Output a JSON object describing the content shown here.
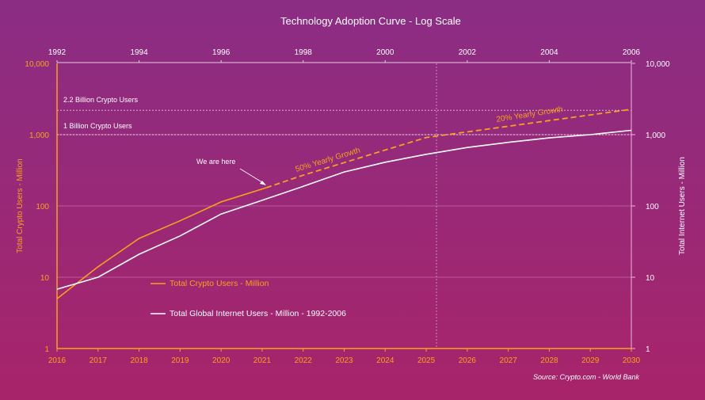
{
  "chart_data": {
    "type": "line",
    "title": "Technology Adoption Curve - Log Scale",
    "y_scale": "log",
    "ylim": [
      1,
      10000
    ],
    "y_ticks": [
      1,
      10,
      100,
      1000,
      10000
    ],
    "y_tick_labels": [
      "1",
      "10",
      "100",
      "1,000",
      "10,000"
    ],
    "ylabel_left": "Total Crypto Users - Million",
    "ylabel_right": "Total Internet Users - Million",
    "x_bottom": {
      "ticks": [
        "2016",
        "2017",
        "2018",
        "2019",
        "2020",
        "2021",
        "2022",
        "2023",
        "2024",
        "2025",
        "2026",
        "2027",
        "2028",
        "2029",
        "2030"
      ],
      "color": "#f7a21b"
    },
    "x_top": {
      "ticks": [
        "1992",
        "1994",
        "1996",
        "1998",
        "2000",
        "2002",
        "2004",
        "2006"
      ],
      "color": "#ffffff"
    },
    "grid": true,
    "legend_placement": "center-left",
    "series": [
      {
        "name": "Total Crypto Users - Million",
        "color": "#f7a21b",
        "x": [
          2016,
          2017,
          2018,
          2019,
          2020,
          2021.1
        ],
        "values": [
          5,
          14,
          35,
          62,
          114,
          180
        ],
        "style": "solid"
      },
      {
        "name": "",
        "color": "#f7a21b",
        "style": "dashed",
        "x": [
          2021.1,
          2022,
          2023,
          2024,
          2025,
          2026,
          2027,
          2028,
          2029,
          2030
        ],
        "values": [
          180,
          270,
          405,
          608,
          911,
          1094,
          1312,
          1575,
          1890,
          2268
        ]
      },
      {
        "name": "Total Global Internet Users - Million - 1992-2006",
        "color": "#ffffff",
        "style": "solid",
        "x": [
          2016,
          2017,
          2018,
          2019,
          2020,
          2021,
          2022,
          2023,
          2024,
          2025,
          2026,
          2027,
          2028,
          2029,
          2030
        ],
        "values": [
          6.8,
          10,
          21,
          38,
          77,
          120,
          188,
          300,
          410,
          530,
          660,
          780,
          900,
          1000,
          1150
        ]
      }
    ],
    "reference_lines": [
      {
        "value": 2200,
        "label": "2.2 Billion Crypto Users"
      },
      {
        "value": 1000,
        "label": "1 Billion Crypto Users"
      }
    ],
    "vertical_marker_x": 2025.25,
    "annotations": [
      {
        "text": "We are here",
        "x": 2021.1,
        "y": 180,
        "color": "#ffffff"
      },
      {
        "text": "50% Yearly Growth",
        "color": "#f7a21b"
      },
      {
        "text": "20% Yearly Growth",
        "color": "#f7a21b"
      }
    ],
    "source": "Source: Crypto.com - World Bank"
  }
}
